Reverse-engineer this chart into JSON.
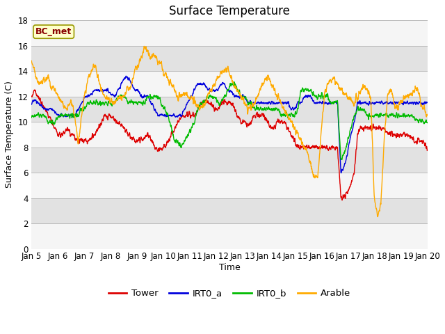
{
  "title": "Surface Temperature",
  "xlabel": "Time",
  "ylabel": "Surface Temperature (C)",
  "ylim": [
    0,
    18
  ],
  "yticks": [
    0,
    2,
    4,
    6,
    8,
    10,
    12,
    14,
    16,
    18
  ],
  "x_tick_labels": [
    "Jan 5",
    "Jan 6",
    "Jan 7",
    "Jan 8",
    "Jan 9",
    "Jan 10",
    "Jan 11",
    "Jan 12",
    "Jan 13",
    "Jan 14",
    "Jan 15",
    "Jan 16",
    "Jan 17",
    "Jan 18",
    "Jan 19",
    "Jan 20"
  ],
  "annotation_text": "BC_met",
  "series": {
    "Tower": {
      "color": "#dd0000",
      "lw": 1.0
    },
    "IRT0_a": {
      "color": "#0000dd",
      "lw": 1.0
    },
    "IRT0_b": {
      "color": "#00bb00",
      "lw": 1.0
    },
    "Arable": {
      "color": "#ffaa00",
      "lw": 1.0
    }
  },
  "legend_labels": [
    "Tower",
    "IRT0_a",
    "IRT0_b",
    "Arable"
  ],
  "legend_colors": [
    "#dd0000",
    "#0000dd",
    "#00bb00",
    "#ffaa00"
  ],
  "band_colors_even": "#e8e8e8",
  "band_colors_odd": "#f5f5f5",
  "background_color": "#ffffff",
  "title_fontsize": 12,
  "axis_label_fontsize": 9,
  "tick_fontsize": 8.5
}
